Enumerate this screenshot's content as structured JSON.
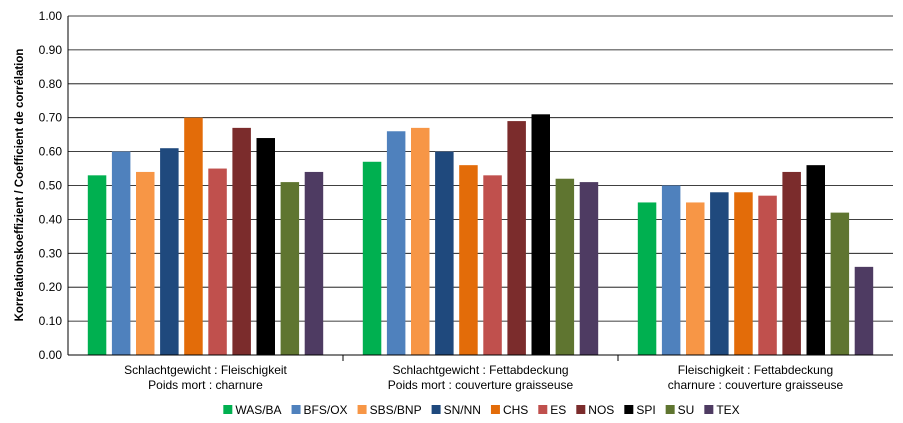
{
  "chart_data": {
    "type": "bar",
    "categories": [
      [
        "Schlachtgewicht : Fleischigkeit",
        "Poids mort : charnure"
      ],
      [
        "Schlachtgewicht : Fettabdeckung",
        "Poids mort : couverture graisseuse"
      ],
      [
        "Fleischigkeit : Fettabdeckung",
        "charnure : couverture graisseuse"
      ]
    ],
    "ylabel": "Korrelationskoeffizient / Coefficient de corrélation",
    "ylim": [
      0,
      1.0
    ],
    "yticks": [
      "0.00",
      "0.10",
      "0.20",
      "0.30",
      "0.40",
      "0.50",
      "0.60",
      "0.70",
      "0.80",
      "0.90",
      "1.00"
    ],
    "grid": true,
    "legend_position": "bottom",
    "series": [
      {
        "name": "WAS/BA",
        "color": "#00b050",
        "values": [
          0.53,
          0.57,
          0.45
        ]
      },
      {
        "name": "BFS/OX",
        "color": "#4f81bd",
        "values": [
          0.6,
          0.66,
          0.5
        ]
      },
      {
        "name": "SBS/BNP",
        "color": "#f79646",
        "values": [
          0.54,
          0.67,
          0.45
        ]
      },
      {
        "name": "SN/NN",
        "color": "#1f497d",
        "values": [
          0.61,
          0.6,
          0.48
        ]
      },
      {
        "name": "CHS",
        "color": "#e36c09",
        "values": [
          0.7,
          0.56,
          0.48
        ]
      },
      {
        "name": "ES",
        "color": "#c0504d",
        "values": [
          0.55,
          0.53,
          0.47
        ]
      },
      {
        "name": "NOS",
        "color": "#7b2c2c",
        "values": [
          0.67,
          0.69,
          0.54
        ]
      },
      {
        "name": "SPI",
        "color": "#000000",
        "values": [
          0.64,
          0.71,
          0.56
        ]
      },
      {
        "name": "SU",
        "color": "#5f7530",
        "values": [
          0.51,
          0.52,
          0.42
        ]
      },
      {
        "name": "TEX",
        "color": "#4e3b62",
        "values": [
          0.54,
          0.51,
          0.26
        ]
      }
    ]
  }
}
